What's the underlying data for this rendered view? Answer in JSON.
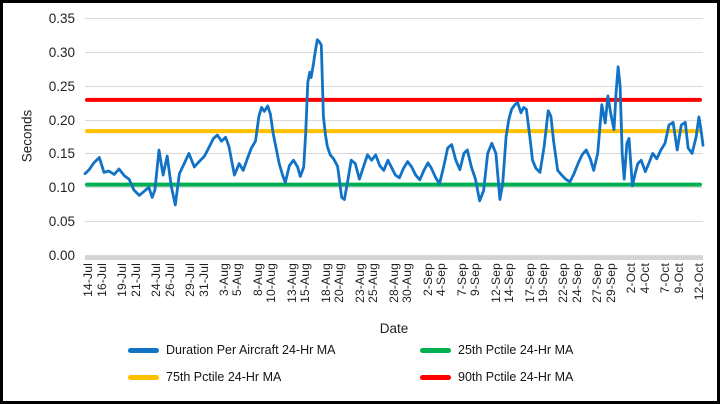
{
  "chart_data": {
    "type": "line",
    "title": "",
    "xlabel": "Date",
    "ylabel": "Seconds",
    "ylim": [
      0,
      0.35
    ],
    "x_day_range": [
      -0.6,
      90.4
    ],
    "grid": true,
    "legend_position": "bottom",
    "colors": {
      "grid": "#D9D9D9",
      "axis_bar": "#D4D4D4",
      "text": "#1f1f1f",
      "blue": "#1172C6",
      "green": "#00B050",
      "gold": "#FFC000",
      "red": "#FF0000"
    },
    "y_ticks": [
      {
        "value": 0.0,
        "label": "0.00"
      },
      {
        "value": 0.05,
        "label": "0.05"
      },
      {
        "value": 0.1,
        "label": "0.10"
      },
      {
        "value": 0.15,
        "label": "0.15"
      },
      {
        "value": 0.2,
        "label": "0.20"
      },
      {
        "value": 0.25,
        "label": "0.25"
      },
      {
        "value": 0.3,
        "label": "0.30"
      },
      {
        "value": 0.35,
        "label": "0.35"
      }
    ],
    "x_ticks": [
      {
        "day": 0,
        "label": "14-Jul"
      },
      {
        "day": 2,
        "label": "16-Jul"
      },
      {
        "day": 5,
        "label": "19-Jul"
      },
      {
        "day": 7,
        "label": "21-Jul"
      },
      {
        "day": 10,
        "label": "24-Jul"
      },
      {
        "day": 12,
        "label": "26-Jul"
      },
      {
        "day": 15,
        "label": "29-Jul"
      },
      {
        "day": 17,
        "label": "31-Jul"
      },
      {
        "day": 20,
        "label": "3-Aug"
      },
      {
        "day": 22,
        "label": "5-Aug"
      },
      {
        "day": 25,
        "label": "8-Aug"
      },
      {
        "day": 27,
        "label": "10-Aug"
      },
      {
        "day": 30,
        "label": "13-Aug"
      },
      {
        "day": 32,
        "label": "15-Aug"
      },
      {
        "day": 35,
        "label": "18-Aug"
      },
      {
        "day": 37,
        "label": "20-Aug"
      },
      {
        "day": 40,
        "label": "23-Aug"
      },
      {
        "day": 42,
        "label": "25-Aug"
      },
      {
        "day": 45,
        "label": "28-Aug"
      },
      {
        "day": 47,
        "label": "30-Aug"
      },
      {
        "day": 50,
        "label": "2-Sep"
      },
      {
        "day": 52,
        "label": "4-Sep"
      },
      {
        "day": 55,
        "label": "7-Sep"
      },
      {
        "day": 57,
        "label": "9-Sep"
      },
      {
        "day": 60,
        "label": "12-Sep"
      },
      {
        "day": 62,
        "label": "14-Sep"
      },
      {
        "day": 65,
        "label": "17-Sep"
      },
      {
        "day": 67,
        "label": "19-Sep"
      },
      {
        "day": 70,
        "label": "22-Sep"
      },
      {
        "day": 72,
        "label": "24-Sep"
      },
      {
        "day": 75,
        "label": "27-Sep"
      },
      {
        "day": 77,
        "label": "29-Sep"
      },
      {
        "day": 80,
        "label": "2-Oct"
      },
      {
        "day": 82,
        "label": "4-Oct"
      },
      {
        "day": 85,
        "label": "7-Oct"
      },
      {
        "day": 87,
        "label": "9-Oct"
      },
      {
        "day": 90,
        "label": "12-Oct"
      }
    ],
    "series": [
      {
        "name": "Duration Per Aircraft 24-Hr MA",
        "color": "#1172C6",
        "points": [
          [
            -0.6,
            0.12
          ],
          [
            0,
            0.126
          ],
          [
            0.7,
            0.136
          ],
          [
            1.5,
            0.144
          ],
          [
            2.2,
            0.122
          ],
          [
            2.9,
            0.124
          ],
          [
            3.7,
            0.119
          ],
          [
            4.4,
            0.127
          ],
          [
            5.2,
            0.117
          ],
          [
            5.9,
            0.112
          ],
          [
            6.6,
            0.096
          ],
          [
            7.4,
            0.088
          ],
          [
            8.1,
            0.094
          ],
          [
            8.8,
            0.1
          ],
          [
            9.3,
            0.085
          ],
          [
            9.7,
            0.096
          ],
          [
            10.3,
            0.155
          ],
          [
            10.9,
            0.118
          ],
          [
            11.5,
            0.146
          ],
          [
            12.1,
            0.102
          ],
          [
            12.7,
            0.074
          ],
          [
            13.3,
            0.12
          ],
          [
            14.0,
            0.135
          ],
          [
            14.7,
            0.15
          ],
          [
            15.5,
            0.13
          ],
          [
            16.2,
            0.138
          ],
          [
            17.0,
            0.146
          ],
          [
            17.7,
            0.16
          ],
          [
            18.3,
            0.172
          ],
          [
            18.9,
            0.177
          ],
          [
            19.5,
            0.168
          ],
          [
            20.1,
            0.174
          ],
          [
            20.6,
            0.16
          ],
          [
            21.4,
            0.118
          ],
          [
            22.1,
            0.135
          ],
          [
            22.7,
            0.125
          ],
          [
            23.3,
            0.142
          ],
          [
            23.9,
            0.158
          ],
          [
            24.5,
            0.168
          ],
          [
            25.0,
            0.205
          ],
          [
            25.4,
            0.218
          ],
          [
            25.8,
            0.212
          ],
          [
            26.3,
            0.22
          ],
          [
            26.7,
            0.208
          ],
          [
            27.1,
            0.18
          ],
          [
            27.6,
            0.155
          ],
          [
            28.0,
            0.135
          ],
          [
            28.5,
            0.118
          ],
          [
            28.9,
            0.107
          ],
          [
            29.5,
            0.132
          ],
          [
            30.1,
            0.14
          ],
          [
            30.7,
            0.13
          ],
          [
            31.1,
            0.116
          ],
          [
            31.6,
            0.13
          ],
          [
            31.9,
            0.18
          ],
          [
            32.2,
            0.255
          ],
          [
            32.5,
            0.27
          ],
          [
            32.7,
            0.262
          ],
          [
            33.0,
            0.28
          ],
          [
            33.3,
            0.3
          ],
          [
            33.6,
            0.318
          ],
          [
            33.9,
            0.315
          ],
          [
            34.2,
            0.31
          ],
          [
            34.5,
            0.205
          ],
          [
            34.8,
            0.178
          ],
          [
            35.1,
            0.16
          ],
          [
            35.5,
            0.148
          ],
          [
            36.0,
            0.142
          ],
          [
            36.6,
            0.131
          ],
          [
            37.2,
            0.085
          ],
          [
            37.6,
            0.082
          ],
          [
            38.1,
            0.11
          ],
          [
            38.6,
            0.14
          ],
          [
            39.2,
            0.135
          ],
          [
            39.8,
            0.112
          ],
          [
            40.4,
            0.13
          ],
          [
            41.0,
            0.148
          ],
          [
            41.6,
            0.14
          ],
          [
            42.2,
            0.148
          ],
          [
            42.8,
            0.132
          ],
          [
            43.4,
            0.125
          ],
          [
            44.0,
            0.14
          ],
          [
            44.5,
            0.13
          ],
          [
            45.1,
            0.118
          ],
          [
            45.7,
            0.114
          ],
          [
            46.3,
            0.128
          ],
          [
            46.9,
            0.138
          ],
          [
            47.5,
            0.13
          ],
          [
            48.1,
            0.118
          ],
          [
            48.7,
            0.111
          ],
          [
            49.3,
            0.125
          ],
          [
            49.9,
            0.136
          ],
          [
            50.4,
            0.128
          ],
          [
            51.0,
            0.115
          ],
          [
            51.6,
            0.105
          ],
          [
            52.2,
            0.13
          ],
          [
            52.8,
            0.158
          ],
          [
            53.4,
            0.163
          ],
          [
            54.0,
            0.14
          ],
          [
            54.6,
            0.126
          ],
          [
            55.2,
            0.15
          ],
          [
            55.7,
            0.155
          ],
          [
            56.3,
            0.13
          ],
          [
            56.9,
            0.112
          ],
          [
            57.5,
            0.08
          ],
          [
            58.1,
            0.095
          ],
          [
            58.7,
            0.15
          ],
          [
            59.3,
            0.165
          ],
          [
            59.9,
            0.15
          ],
          [
            60.5,
            0.082
          ],
          [
            60.9,
            0.105
          ],
          [
            61.4,
            0.175
          ],
          [
            61.8,
            0.2
          ],
          [
            62.2,
            0.215
          ],
          [
            62.7,
            0.222
          ],
          [
            63.1,
            0.225
          ],
          [
            63.6,
            0.21
          ],
          [
            64.0,
            0.218
          ],
          [
            64.4,
            0.215
          ],
          [
            64.9,
            0.175
          ],
          [
            65.3,
            0.14
          ],
          [
            65.8,
            0.128
          ],
          [
            66.4,
            0.122
          ],
          [
            67.0,
            0.16
          ],
          [
            67.6,
            0.213
          ],
          [
            68.0,
            0.205
          ],
          [
            68.4,
            0.168
          ],
          [
            69.0,
            0.125
          ],
          [
            69.6,
            0.118
          ],
          [
            70.2,
            0.112
          ],
          [
            70.8,
            0.108
          ],
          [
            71.4,
            0.12
          ],
          [
            72.0,
            0.135
          ],
          [
            72.6,
            0.148
          ],
          [
            73.2,
            0.155
          ],
          [
            73.8,
            0.142
          ],
          [
            74.3,
            0.125
          ],
          [
            74.9,
            0.15
          ],
          [
            75.5,
            0.222
          ],
          [
            76.0,
            0.195
          ],
          [
            76.4,
            0.235
          ],
          [
            76.8,
            0.21
          ],
          [
            77.3,
            0.185
          ],
          [
            77.6,
            0.24
          ],
          [
            77.9,
            0.278
          ],
          [
            78.2,
            0.25
          ],
          [
            78.5,
            0.15
          ],
          [
            78.8,
            0.112
          ],
          [
            79.2,
            0.165
          ],
          [
            79.5,
            0.172
          ],
          [
            80.0,
            0.102
          ],
          [
            80.4,
            0.12
          ],
          [
            80.8,
            0.135
          ],
          [
            81.3,
            0.14
          ],
          [
            81.9,
            0.123
          ],
          [
            82.4,
            0.135
          ],
          [
            83.0,
            0.15
          ],
          [
            83.6,
            0.142
          ],
          [
            84.2,
            0.155
          ],
          [
            84.8,
            0.165
          ],
          [
            85.4,
            0.192
          ],
          [
            86.0,
            0.196
          ],
          [
            86.6,
            0.155
          ],
          [
            87.2,
            0.192
          ],
          [
            87.8,
            0.196
          ],
          [
            88.2,
            0.158
          ],
          [
            88.8,
            0.15
          ],
          [
            89.4,
            0.175
          ],
          [
            89.8,
            0.204
          ],
          [
            90.1,
            0.185
          ],
          [
            90.4,
            0.162
          ]
        ]
      }
    ],
    "ref_lines": [
      {
        "name": "25th Pctile 24-Hr MA",
        "color": "#00B050",
        "value": 0.104
      },
      {
        "name": "75th Pctile 24-Hr MA",
        "color": "#FFC000",
        "value": 0.183
      },
      {
        "name": "90th Pctile 24-Hr MA",
        "color": "#FF0000",
        "value": 0.229
      }
    ],
    "legend": [
      {
        "label": "Duration Per Aircraft 24-Hr MA",
        "color": "#1172C6"
      },
      {
        "label": "25th Pctile 24-Hr MA",
        "color": "#00B050"
      },
      {
        "label": "75th Pctile 24-Hr MA",
        "color": "#FFC000"
      },
      {
        "label": "90th Pctile 24-Hr MA",
        "color": "#FF0000"
      }
    ]
  }
}
